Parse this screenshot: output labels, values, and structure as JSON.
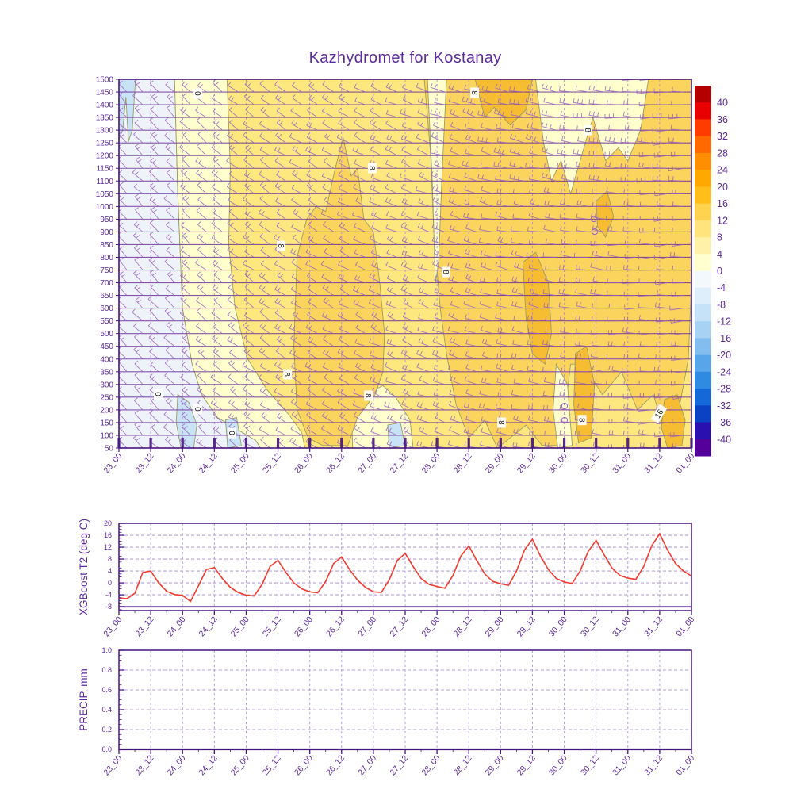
{
  "title": "Kazhydromet for Kostanay",
  "palette": {
    "text_purple": "#5e2b9b",
    "axis_purple": "#46157e",
    "level_line": "#6b2d96",
    "grid_dash": "#b7a0d8",
    "vgrid_dash": "#b28fd0",
    "barb": "#9a63c2",
    "red_line": "#f23a2d",
    "contour_line": "#9c9c66",
    "chip_bg": "#ffffff",
    "chip_text": "#222222"
  },
  "x_ticks": [
    "23_00",
    "23_12",
    "24_00",
    "24_12",
    "25_00",
    "25_12",
    "26_00",
    "26_12",
    "27_00",
    "27_12",
    "28_00",
    "28_12",
    "29_00",
    "29_12",
    "30_00",
    "30_12",
    "31_00",
    "31_12",
    "01_00"
  ],
  "chart_data": [
    {
      "type": "heatmap",
      "title": "Kazhydromet for Kostanay",
      "subtitle": "time-height temperature cross-section with wind barbs",
      "x_categories": [
        "23_00",
        "23_12",
        "24_00",
        "24_12",
        "25_00",
        "25_12",
        "26_00",
        "26_12",
        "27_00",
        "27_12",
        "28_00",
        "28_12",
        "29_00",
        "29_12",
        "30_00",
        "30_12",
        "31_00",
        "31_12",
        "01_00"
      ],
      "y_levels": [
        1500,
        1450,
        1400,
        1350,
        1300,
        1250,
        1200,
        1150,
        1100,
        1050,
        1000,
        950,
        900,
        850,
        800,
        750,
        700,
        650,
        600,
        550,
        500,
        450,
        400,
        350,
        300,
        250,
        200,
        150,
        100,
        50
      ],
      "y_range": [
        50,
        1500
      ],
      "x_range_halfdays": 18,
      "grid": "dashed-vertical",
      "colorbar": {
        "tick_labels": [
          "40",
          "36",
          "32",
          "28",
          "24",
          "20",
          "16",
          "12",
          "8",
          "4",
          "0",
          "-4",
          "-8",
          "-12",
          "-16",
          "-20",
          "-24",
          "-28",
          "-32",
          "-36",
          "-40"
        ],
        "segment_colors": [
          "#b50000",
          "#e80000",
          "#ff3c00",
          "#ff6900",
          "#ff8f00",
          "#ffa800",
          "#ffbe19",
          "#ffd24f",
          "#ffe37c",
          "#fff2a8",
          "#ffffd0",
          "#f3f8fd",
          "#dfeefb",
          "#c6e2f8",
          "#a8d2f4",
          "#83bdef",
          "#58a5e9",
          "#2f8ae2",
          "#1468d8",
          "#0b42c4",
          "#2a10ae",
          "#55009b"
        ]
      },
      "base_fill": "#fce87f",
      "fill_regions": [
        {
          "fill": "#eef3fa",
          "pts": [
            [
              0,
              1500
            ],
            [
              1.75,
              1500
            ],
            [
              1.85,
              1050
            ],
            [
              2.0,
              600
            ],
            [
              2.3,
              380
            ],
            [
              2.6,
              260
            ],
            [
              3.1,
              170
            ],
            [
              4.3,
              80
            ],
            [
              4.45,
              50
            ],
            [
              0,
              50
            ]
          ]
        },
        {
          "fill": "#ffffcd",
          "pts": [
            [
              1.75,
              1500
            ],
            [
              3.4,
              1500
            ],
            [
              3.5,
              1150
            ],
            [
              3.45,
              850
            ],
            [
              3.65,
              600
            ],
            [
              4.05,
              400
            ],
            [
              4.65,
              280
            ],
            [
              5.35,
              180
            ],
            [
              5.75,
              110
            ],
            [
              5.85,
              50
            ],
            [
              4.45,
              50
            ],
            [
              4.3,
              80
            ],
            [
              3.1,
              170
            ],
            [
              2.6,
              260
            ],
            [
              2.3,
              380
            ],
            [
              2.0,
              600
            ],
            [
              1.85,
              1050
            ]
          ]
        },
        {
          "fill": "#ffffcd",
          "pts": [
            [
              7.3,
              230
            ],
            [
              7.8,
              265
            ],
            [
              8.3,
              295
            ],
            [
              8.7,
              250
            ],
            [
              9.15,
              160
            ],
            [
              9.25,
              50
            ],
            [
              7.35,
              50
            ]
          ]
        },
        {
          "fill": "#c9e3f6",
          "pts": [
            [
              0,
              1500
            ],
            [
              0.52,
              1500
            ],
            [
              0.42,
              1300
            ],
            [
              0.3,
              1255
            ],
            [
              0.22,
              1430
            ],
            [
              0.12,
              1300
            ],
            [
              0,
              1265
            ]
          ]
        },
        {
          "fill": "#c9e3f6",
          "pts": [
            [
              1.85,
              260
            ],
            [
              2.2,
              230
            ],
            [
              2.45,
              140
            ],
            [
              2.35,
              50
            ],
            [
              1.95,
              50
            ],
            [
              1.8,
              150
            ]
          ]
        },
        {
          "fill": "#c9e3f6",
          "pts": [
            [
              3.35,
              160
            ],
            [
              3.7,
              170
            ],
            [
              3.85,
              60
            ],
            [
              3.42,
              50
            ]
          ]
        },
        {
          "fill": "#c9e3f6",
          "pts": [
            [
              8.45,
              140
            ],
            [
              8.85,
              150
            ],
            [
              9.0,
              60
            ],
            [
              8.5,
              50
            ]
          ]
        },
        {
          "fill": "#fad45c",
          "pts": [
            [
              5.5,
              450
            ],
            [
              5.6,
              800
            ],
            [
              5.9,
              950
            ],
            [
              6.2,
              1000
            ],
            [
              6.5,
              980
            ],
            [
              6.8,
              1150
            ],
            [
              7.05,
              1270
            ],
            [
              7.3,
              1120
            ],
            [
              7.5,
              1150
            ],
            [
              7.7,
              950
            ],
            [
              8.0,
              900
            ],
            [
              8.2,
              700
            ],
            [
              8.35,
              500
            ],
            [
              8.3,
              350
            ],
            [
              8.05,
              260
            ],
            [
              7.5,
              170
            ],
            [
              7.2,
              60
            ],
            [
              6.4,
              60
            ],
            [
              5.95,
              90
            ],
            [
              5.6,
              200
            ]
          ]
        },
        {
          "fill": "#fad45c",
          "pts": [
            [
              9.6,
              1500
            ],
            [
              18,
              1500
            ],
            [
              18,
              700
            ],
            [
              17.9,
              400
            ],
            [
              17.6,
              200
            ],
            [
              17.2,
              100
            ],
            [
              16.8,
              260
            ],
            [
              16.3,
              200
            ],
            [
              15.8,
              350
            ],
            [
              15.2,
              260
            ],
            [
              14.6,
              380
            ],
            [
              14.2,
              380
            ],
            [
              13.9,
              60
            ],
            [
              13.3,
              60
            ],
            [
              12.8,
              140
            ],
            [
              12.3,
              90
            ],
            [
              11.9,
              50
            ],
            [
              11.5,
              160
            ],
            [
              11.0,
              90
            ],
            [
              10.6,
              220
            ],
            [
              10.3,
              420
            ],
            [
              10.1,
              600
            ],
            [
              9.9,
              900
            ],
            [
              9.8,
              1200
            ]
          ]
        },
        {
          "fill": "#ffffcd",
          "pts": [
            [
              9.7,
              1500
            ],
            [
              10.3,
              1500
            ],
            [
              10.15,
              1100
            ],
            [
              10.05,
              780
            ],
            [
              9.95,
              700
            ],
            [
              9.85,
              1100
            ]
          ]
        },
        {
          "fill": "#ffffcd",
          "pts": [
            [
              13.1,
              1500
            ],
            [
              16.65,
              1500
            ],
            [
              16.4,
              1300
            ],
            [
              16.0,
              1180
            ],
            [
              15.7,
              1230
            ],
            [
              15.3,
              1180
            ],
            [
              14.9,
              1350
            ],
            [
              14.5,
              1180
            ],
            [
              14.2,
              1050
            ],
            [
              13.9,
              1180
            ],
            [
              13.6,
              1100
            ],
            [
              13.35,
              1250
            ]
          ]
        },
        {
          "fill": "#ffffcd",
          "pts": [
            [
              13.75,
              380
            ],
            [
              14.1,
              300
            ],
            [
              14.25,
              60
            ],
            [
              13.8,
              50
            ],
            [
              13.65,
              200
            ]
          ]
        },
        {
          "fill": "#f6bd33",
          "pts": [
            [
              11.2,
              1500
            ],
            [
              13.0,
              1500
            ],
            [
              12.8,
              1380
            ],
            [
              12.3,
              1320
            ],
            [
              11.8,
              1390
            ],
            [
              11.5,
              1350
            ]
          ]
        },
        {
          "fill": "#f6bd33",
          "pts": [
            [
              12.7,
              780
            ],
            [
              13.1,
              820
            ],
            [
              13.5,
              700
            ],
            [
              13.6,
              500
            ],
            [
              13.4,
              380
            ],
            [
              13.0,
              420
            ],
            [
              12.8,
              560
            ]
          ]
        },
        {
          "fill": "#f6bd33",
          "pts": [
            [
              14.35,
              420
            ],
            [
              14.7,
              450
            ],
            [
              14.95,
              300
            ],
            [
              14.85,
              90
            ],
            [
              14.45,
              70
            ],
            [
              14.3,
              220
            ]
          ]
        },
        {
          "fill": "#f6bd33",
          "pts": [
            [
              17.15,
              240
            ],
            [
              17.55,
              260
            ],
            [
              17.8,
              160
            ],
            [
              17.7,
              60
            ],
            [
              17.25,
              50
            ],
            [
              17.05,
              130
            ]
          ]
        },
        {
          "fill": "#f6bd33",
          "pts": [
            [
              15.0,
              1020
            ],
            [
              15.35,
              1060
            ],
            [
              15.55,
              960
            ],
            [
              15.3,
              880
            ],
            [
              15.05,
              920
            ]
          ]
        }
      ],
      "contour_labels": [
        {
          "x": 2.42,
          "y": 1444,
          "t": "0"
        },
        {
          "x": 11.12,
          "y": 1447,
          "t": "8"
        },
        {
          "x": 14.68,
          "y": 1300,
          "t": "8"
        },
        {
          "x": 7.9,
          "y": 1151,
          "t": "8"
        },
        {
          "x": 5.04,
          "y": 845,
          "t": "8"
        },
        {
          "x": 10.22,
          "y": 742,
          "t": "8"
        },
        {
          "x": 1.17,
          "y": 262,
          "t": "0"
        },
        {
          "x": 2.42,
          "y": 203,
          "t": "0"
        },
        {
          "x": 3.49,
          "y": 109,
          "t": "0"
        },
        {
          "x": 5.24,
          "y": 340,
          "t": "8"
        },
        {
          "x": 7.78,
          "y": 256,
          "t": "8"
        },
        {
          "x": 11.97,
          "y": 150,
          "t": "8"
        },
        {
          "x": 14.5,
          "y": 160,
          "t": "8"
        },
        {
          "x": 17.03,
          "y": 181,
          "t": "16"
        }
      ],
      "calm_circles": [
        {
          "x": 14.93,
          "y": 951
        },
        {
          "x": 14.96,
          "y": 901
        },
        {
          "x": 14.01,
          "y": 215
        },
        {
          "x": 14.01,
          "y": 159
        }
      ]
    },
    {
      "type": "line",
      "name": "XGBoost T2 (deg C)",
      "series_color": "#f23a2d",
      "ylim": [
        -9.3,
        20
      ],
      "y_ticks": [
        20,
        16,
        12,
        8,
        4,
        0,
        -4,
        -8
      ],
      "step_hours": 3,
      "x_categories": [
        "23_00",
        "23_12",
        "24_00",
        "24_12",
        "25_00",
        "25_12",
        "26_00",
        "26_12",
        "27_00",
        "27_12",
        "28_00",
        "28_12",
        "29_00",
        "29_12",
        "30_00",
        "30_12",
        "31_00",
        "31_12",
        "01_00"
      ],
      "values": [
        -5.0,
        -5.3,
        -3.5,
        3.5,
        4.0,
        0.0,
        -2.8,
        -3.9,
        -4.2,
        -6.2,
        -1.0,
        4.5,
        5.2,
        1.5,
        -1.5,
        -3.2,
        -4.1,
        -4.4,
        -0.5,
        5.5,
        7.6,
        3.5,
        0.0,
        -2.0,
        -3.0,
        -3.3,
        0.5,
        6.5,
        8.7,
        4.5,
        1.0,
        -1.5,
        -3.0,
        -3.2,
        1.0,
        7.5,
        9.9,
        5.5,
        1.5,
        -0.5,
        -1.2,
        -1.8,
        2.5,
        9.0,
        12.4,
        7.5,
        3.0,
        0.5,
        -0.3,
        -0.8,
        4.0,
        11.0,
        14.7,
        9.0,
        4.5,
        1.5,
        0.3,
        -0.2,
        4.0,
        10.5,
        14.3,
        9.5,
        5.0,
        2.5,
        1.6,
        1.2,
        5.5,
        12.5,
        16.5,
        11.0,
        6.5,
        4.0,
        2.3
      ]
    },
    {
      "type": "line",
      "name": "PRECIP, mm",
      "series_color": "#5e2b9b",
      "ylim": [
        0,
        1
      ],
      "y_tick_labels": [
        "1.0",
        "0.8",
        "0.6",
        "0.4",
        "0.2",
        "0.0"
      ],
      "y_ticks": [
        1.0,
        0.8,
        0.6,
        0.4,
        0.2,
        0.0
      ],
      "step_hours": 3,
      "x_categories": [
        "23_00",
        "23_12",
        "24_00",
        "24_12",
        "25_00",
        "25_12",
        "26_00",
        "26_12",
        "27_00",
        "27_12",
        "28_00",
        "28_12",
        "29_00",
        "29_12",
        "30_00",
        "30_12",
        "31_00",
        "31_12",
        "01_00"
      ],
      "values": [
        0,
        0,
        0,
        0,
        0,
        0,
        0,
        0,
        0,
        0,
        0,
        0,
        0,
        0,
        0,
        0,
        0,
        0,
        0,
        0,
        0,
        0,
        0,
        0,
        0,
        0,
        0,
        0,
        0,
        0,
        0,
        0,
        0,
        0,
        0,
        0,
        0,
        0,
        0,
        0,
        0,
        0,
        0,
        0,
        0,
        0,
        0,
        0,
        0,
        0,
        0,
        0,
        0,
        0,
        0,
        0,
        0,
        0,
        0,
        0,
        0,
        0,
        0,
        0,
        0,
        0,
        0,
        0,
        0,
        0,
        0,
        0,
        0
      ]
    }
  ]
}
